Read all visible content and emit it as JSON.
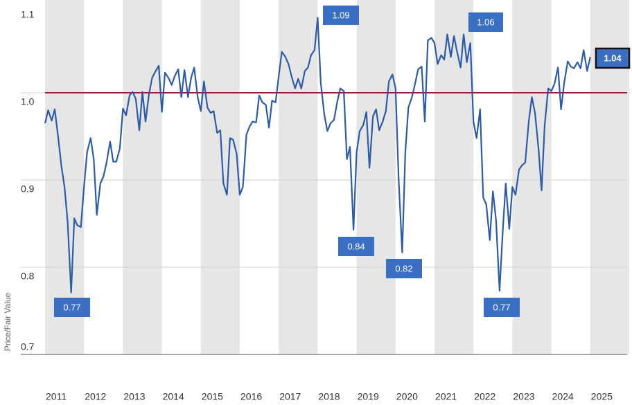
{
  "chart_data": {
    "type": "line",
    "y_label": "Price/Fair Value",
    "xlim": [
      2011,
      2026
    ],
    "xticks": [
      2011,
      2012,
      2013,
      2014,
      2015,
      2016,
      2017,
      2018,
      2019,
      2020,
      2021,
      2022,
      2023,
      2024,
      2025
    ],
    "ylim": [
      0.7,
      1.1
    ],
    "yticks": [
      0.7,
      0.8,
      0.9,
      {
        "value": 1,
        "label": "1.0"
      },
      1.1
    ],
    "grid": true,
    "year_bands": true,
    "reference_line": {
      "value": 1,
      "color": "#a0173a"
    },
    "series": [
      {
        "color": "#2a5caa",
        "x": [
          2011,
          2011.08,
          2011.17,
          2011.25,
          2011.33,
          2011.42,
          2011.5,
          2011.58,
          2011.67,
          2011.75,
          2011.83,
          2011.92,
          2012,
          2012.08,
          2012.17,
          2012.25,
          2012.33,
          2012.42,
          2012.5,
          2012.58,
          2012.67,
          2012.75,
          2012.83,
          2012.92,
          2013,
          2013.08,
          2013.17,
          2013.25,
          2013.33,
          2013.42,
          2013.5,
          2013.58,
          2013.67,
          2013.75,
          2013.83,
          2013.92,
          2014,
          2014.08,
          2014.17,
          2014.25,
          2014.33,
          2014.42,
          2014.5,
          2014.58,
          2014.67,
          2014.75,
          2014.83,
          2014.92,
          2015,
          2015.08,
          2015.17,
          2015.25,
          2015.33,
          2015.42,
          2015.5,
          2015.58,
          2015.67,
          2015.75,
          2015.83,
          2015.92,
          2016,
          2016.08,
          2016.17,
          2016.25,
          2016.33,
          2016.42,
          2016.5,
          2016.58,
          2016.67,
          2016.75,
          2016.83,
          2016.92,
          2017,
          2017.08,
          2017.17,
          2017.25,
          2017.33,
          2017.42,
          2017.5,
          2017.58,
          2017.67,
          2017.75,
          2017.83,
          2017.92,
          2018,
          2018.08,
          2018.17,
          2018.25,
          2018.33,
          2018.42,
          2018.5,
          2018.58,
          2018.67,
          2018.75,
          2018.83,
          2018.92,
          2019,
          2019.08,
          2019.17,
          2019.25,
          2019.33,
          2019.42,
          2019.5,
          2019.58,
          2019.67,
          2019.75,
          2019.83,
          2019.92,
          2020,
          2020.08,
          2020.17,
          2020.25,
          2020.33,
          2020.42,
          2020.5,
          2020.58,
          2020.67,
          2020.75,
          2020.83,
          2020.92,
          2021,
          2021.08,
          2021.17,
          2021.25,
          2021.33,
          2021.42,
          2021.5,
          2021.58,
          2021.67,
          2021.75,
          2021.83,
          2021.92,
          2022,
          2022.08,
          2022.17,
          2022.25,
          2022.33,
          2022.42,
          2022.5,
          2022.58,
          2022.67,
          2022.75,
          2022.83,
          2022.92,
          2023,
          2023.08,
          2023.17,
          2023.25,
          2023.33,
          2023.42,
          2023.5,
          2023.58,
          2023.67,
          2023.75,
          2023.83,
          2023.92,
          2024,
          2024.08,
          2024.17,
          2024.25,
          2024.33,
          2024.42,
          2024.5,
          2024.58,
          2024.67,
          2024.75,
          2024.83,
          2024.92,
          2025
        ],
        "values": [
          0.965,
          0.98,
          0.968,
          0.981,
          0.952,
          0.916,
          0.892,
          0.852,
          0.771,
          0.856,
          0.848,
          0.846,
          0.892,
          0.932,
          0.948,
          0.924,
          0.86,
          0.896,
          0.904,
          0.92,
          0.944,
          0.921,
          0.921,
          0.936,
          0.982,
          0.974,
          0.997,
          1.001,
          0.993,
          0.957,
          1.001,
          0.967,
          0.999,
          1.017,
          1.024,
          1.031,
          0.978,
          1.023,
          1.017,
          1.009,
          1.019,
          1.027,
          0.995,
          1.026,
          0.995,
          1.017,
          1.029,
          0.995,
          0.979,
          1.013,
          0.983,
          0.977,
          0.979,
          0.954,
          0.957,
          0.896,
          0.883,
          0.948,
          0.946,
          0.93,
          0.883,
          0.892,
          0.952,
          0.961,
          0.967,
          0.966,
          0.997,
          0.989,
          0.986,
          0.96,
          0.991,
          0.989,
          1.019,
          1.047,
          1.041,
          1.033,
          1.019,
          1.005,
          1.016,
          1.005,
          1.025,
          1.029,
          1.043,
          1.049,
          1.086,
          1.011,
          0.975,
          0.956,
          0.965,
          0.969,
          0.989,
          1.005,
          1.002,
          0.924,
          0.938,
          0.843,
          0.932,
          0.956,
          0.963,
          0.978,
          0.914,
          0.973,
          0.981,
          0.957,
          0.967,
          0.979,
          1.013,
          1.021,
          1.005,
          0.9,
          0.817,
          0.932,
          0.983,
          0.995,
          1.01,
          1.027,
          1.03,
          0.967,
          1.06,
          1.063,
          1.057,
          1.033,
          1.043,
          1.038,
          1.067,
          1.041,
          1.065,
          1.047,
          1.029,
          1.067,
          1.035,
          1.057,
          0.967,
          0.948,
          0.981,
          0.88,
          0.872,
          0.831,
          0.887,
          0.854,
          0.773,
          0.84,
          0.896,
          0.844,
          0.892,
          0.883,
          0.912,
          0.917,
          0.92,
          0.967,
          0.995,
          0.977,
          0.936,
          0.888,
          0.963,
          1.005,
          1.002,
          1.01,
          1.029,
          0.981,
          1.011,
          1.036,
          1.03,
          1.028,
          1.035,
          1.028,
          1.049,
          1.025,
          1.041
        ]
      }
    ],
    "annotations": [
      "0.77",
      "1.09",
      "0.84",
      "0.82",
      "1.06",
      "0.77",
      "1.04"
    ]
  }
}
